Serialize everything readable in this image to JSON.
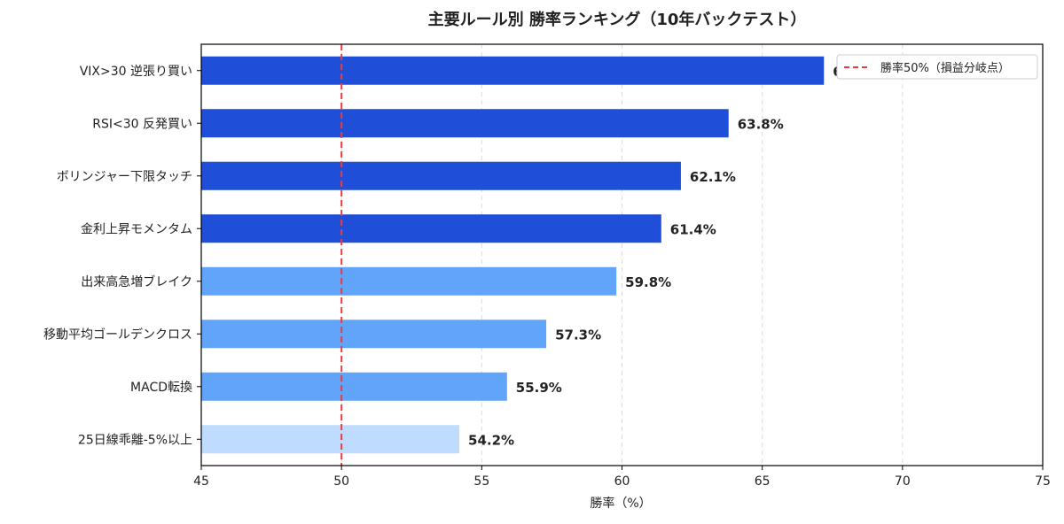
{
  "chart_data": {
    "type": "bar",
    "orientation": "horizontal",
    "title": "主要ルール別 勝率ランキング（10年バックテスト）",
    "xlabel": "勝率（%）",
    "ylabel": "",
    "xlim": [
      45,
      75
    ],
    "xticks": [
      45,
      50,
      55,
      60,
      65,
      70,
      75
    ],
    "grid": "x dashed",
    "categories": [
      "VIX>30 逆張り買い",
      "RSI<30 反発買い",
      "ボリンジャー下限タッチ",
      "金利上昇モメンタム",
      "出来高急増ブレイク",
      "移動平均ゴールデンクロス",
      "MACD転換",
      "25日線乖離-5%以上"
    ],
    "values": [
      67.2,
      63.8,
      62.1,
      61.4,
      59.8,
      57.3,
      55.9,
      54.2
    ],
    "data_labels": [
      "67.2%",
      "63.8%",
      "62.1%",
      "61.4%",
      "59.8%",
      "57.3%",
      "55.9%",
      "54.2%"
    ],
    "bar_colors": [
      "#1f4fd8",
      "#1f4fd8",
      "#1f4fd8",
      "#1f4fd8",
      "#60a5fa",
      "#60a5fa",
      "#60a5fa",
      "#bfdbfe"
    ],
    "reference_line": {
      "value": 50,
      "label": "勝率50%（損益分岐点）",
      "color": "#ef3b3b"
    },
    "legend": {
      "placement": "top-right",
      "entries": [
        "勝率50%（損益分岐点）"
      ]
    }
  }
}
